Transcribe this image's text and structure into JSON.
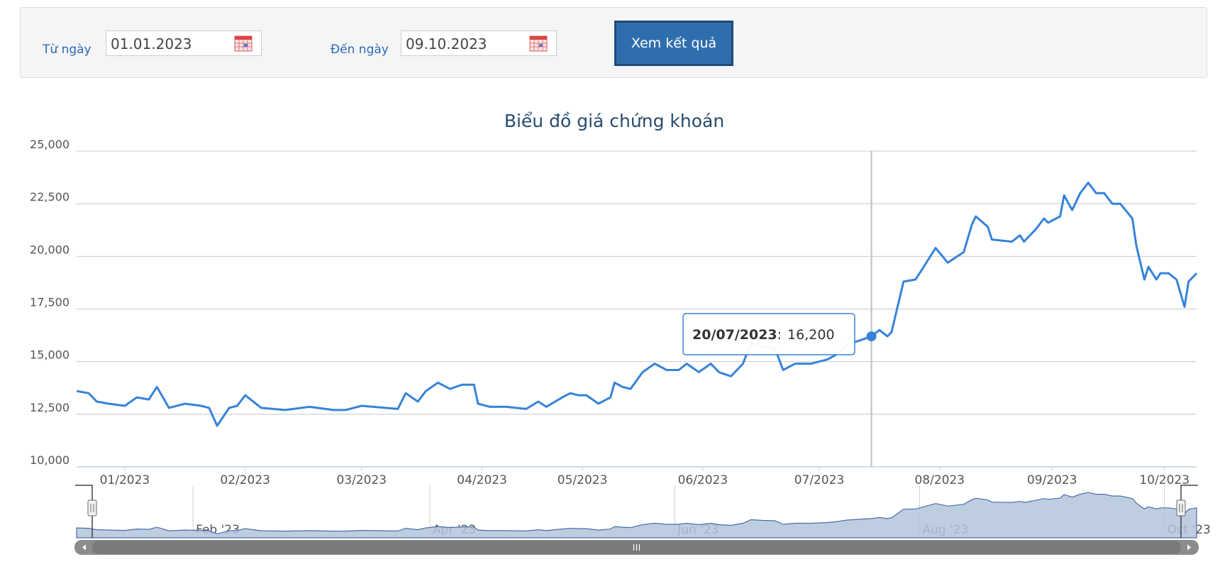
{
  "form": {
    "from_label": "Từ ngày",
    "from_value": "01.01.2023",
    "to_label": "Đến ngày",
    "to_value": "09.10.2023",
    "submit": "Xem kết quả"
  },
  "chart_data": {
    "type": "line",
    "title": "Biểu đồ giá chứng khoán",
    "x": [
      "2023-01-03",
      "2023-01-06",
      "2023-01-08",
      "2023-01-11",
      "2023-01-15",
      "2023-01-18",
      "2023-01-21",
      "2023-01-23",
      "2023-01-26",
      "2023-01-30",
      "2023-02-03",
      "2023-02-05",
      "2023-02-07",
      "2023-02-10",
      "2023-02-12",
      "2023-02-14",
      "2023-02-18",
      "2023-02-24",
      "2023-03-02",
      "2023-03-08",
      "2023-03-11",
      "2023-03-15",
      "2023-03-24",
      "2023-03-26",
      "2023-03-29",
      "2023-03-31",
      "2023-04-03",
      "2023-04-06",
      "2023-04-09",
      "2023-04-12",
      "2023-04-13",
      "2023-04-16",
      "2023-04-20",
      "2023-04-25",
      "2023-04-28",
      "2023-04-30",
      "2023-05-04",
      "2023-05-06",
      "2023-05-08",
      "2023-05-10",
      "2023-05-13",
      "2023-05-16",
      "2023-05-17",
      "2023-05-19",
      "2023-05-21",
      "2023-05-24",
      "2023-05-27",
      "2023-05-30",
      "2023-06-02",
      "2023-06-04",
      "2023-06-07",
      "2023-06-10",
      "2023-06-12",
      "2023-06-15",
      "2023-06-18",
      "2023-06-20",
      "2023-06-23",
      "2023-06-26",
      "2023-06-28",
      "2023-07-01",
      "2023-07-05",
      "2023-07-09",
      "2023-07-11",
      "2023-07-14",
      "2023-07-20",
      "2023-07-22",
      "2023-07-24",
      "2023-07-25",
      "2023-07-28",
      "2023-07-31",
      "2023-08-02",
      "2023-08-05",
      "2023-08-08",
      "2023-08-12",
      "2023-08-14",
      "2023-08-15",
      "2023-08-18",
      "2023-08-19",
      "2023-08-24",
      "2023-08-26",
      "2023-08-27",
      "2023-08-30",
      "2023-09-01",
      "2023-09-02",
      "2023-09-05",
      "2023-09-06",
      "2023-09-08",
      "2023-09-10",
      "2023-09-12",
      "2023-09-14",
      "2023-09-16",
      "2023-09-18",
      "2023-09-20",
      "2023-09-23",
      "2023-09-24",
      "2023-09-26",
      "2023-09-27",
      "2023-09-29",
      "2023-09-30",
      "2023-10-02",
      "2023-10-04",
      "2023-10-06",
      "2023-10-07",
      "2023-10-09"
    ],
    "series": [
      {
        "color": "#3683d9",
        "values": [
          13600,
          13500,
          13100,
          13000,
          12900,
          13300,
          13200,
          13800,
          12800,
          13000,
          12900,
          12800,
          11950,
          12800,
          12900,
          13400,
          12800,
          12700,
          12850,
          12700,
          12700,
          12900,
          12750,
          13500,
          13100,
          13600,
          14000,
          13700,
          13900,
          13900,
          13000,
          12850,
          12850,
          12750,
          13100,
          12850,
          13300,
          13500,
          13400,
          13400,
          13000,
          13300,
          14000,
          13800,
          13700,
          14500,
          14900,
          14600,
          14600,
          14900,
          14500,
          14900,
          14500,
          14300,
          14900,
          15900,
          15700,
          15600,
          14600,
          14900,
          14900,
          15100,
          15300,
          15800,
          16200,
          16500,
          16200,
          16400,
          18800,
          18900,
          19500,
          20400,
          19700,
          20200,
          21500,
          21900,
          21400,
          20800,
          20700,
          21000,
          20700,
          21300,
          21800,
          21600,
          21900,
          22900,
          22200,
          23000,
          23500,
          23000,
          23000,
          22500,
          22500,
          21800,
          20500,
          18900,
          19500,
          18900,
          19200,
          19200,
          18900,
          17600,
          18800,
          19200
        ]
      }
    ],
    "xlim": [
      "2023-01-03",
      "2023-10-09"
    ],
    "xticks": [
      {
        "value": "2023-01-15",
        "label": "01/2023"
      },
      {
        "value": "2023-02-14",
        "label": "02/2023"
      },
      {
        "value": "2023-03-15",
        "label": "03/2023"
      },
      {
        "value": "2023-04-14",
        "label": "04/2023"
      },
      {
        "value": "2023-05-09",
        "label": "05/2023"
      },
      {
        "value": "2023-06-08",
        "label": "06/2023"
      },
      {
        "value": "2023-07-07",
        "label": "07/2023"
      },
      {
        "value": "2023-08-06",
        "label": "08/2023"
      },
      {
        "value": "2023-09-03",
        "label": "09/2023"
      },
      {
        "value": "2023-10-01",
        "label": "10/2023"
      }
    ],
    "ylim": [
      10000,
      25000
    ],
    "yticks": [
      {
        "value": 10000,
        "label": "10,000"
      },
      {
        "value": 12500,
        "label": "12,500"
      },
      {
        "value": 15000,
        "label": "15,000"
      },
      {
        "value": 17500,
        "label": "17,500"
      },
      {
        "value": 20000,
        "label": "20,000"
      },
      {
        "value": 22500,
        "label": "22,500"
      },
      {
        "value": 25000,
        "label": "25,000"
      }
    ],
    "grid": true,
    "tooltip": {
      "x": "20/07/2023",
      "separator": ":",
      "y": 16200,
      "y_label": "16,200"
    },
    "navigator": {
      "color": "#b4c4dc",
      "line_color": "#4a6ea8",
      "xticks": [
        {
          "value": "2023-02-01",
          "label": "Feb '23"
        },
        {
          "value": "2023-04-01",
          "label": "Apr '23"
        },
        {
          "value": "2023-06-01",
          "label": "Jun '23"
        },
        {
          "value": "2023-08-01",
          "label": "Aug '23"
        },
        {
          "value": "2023-10-01",
          "label": "Oct '23"
        }
      ]
    }
  }
}
